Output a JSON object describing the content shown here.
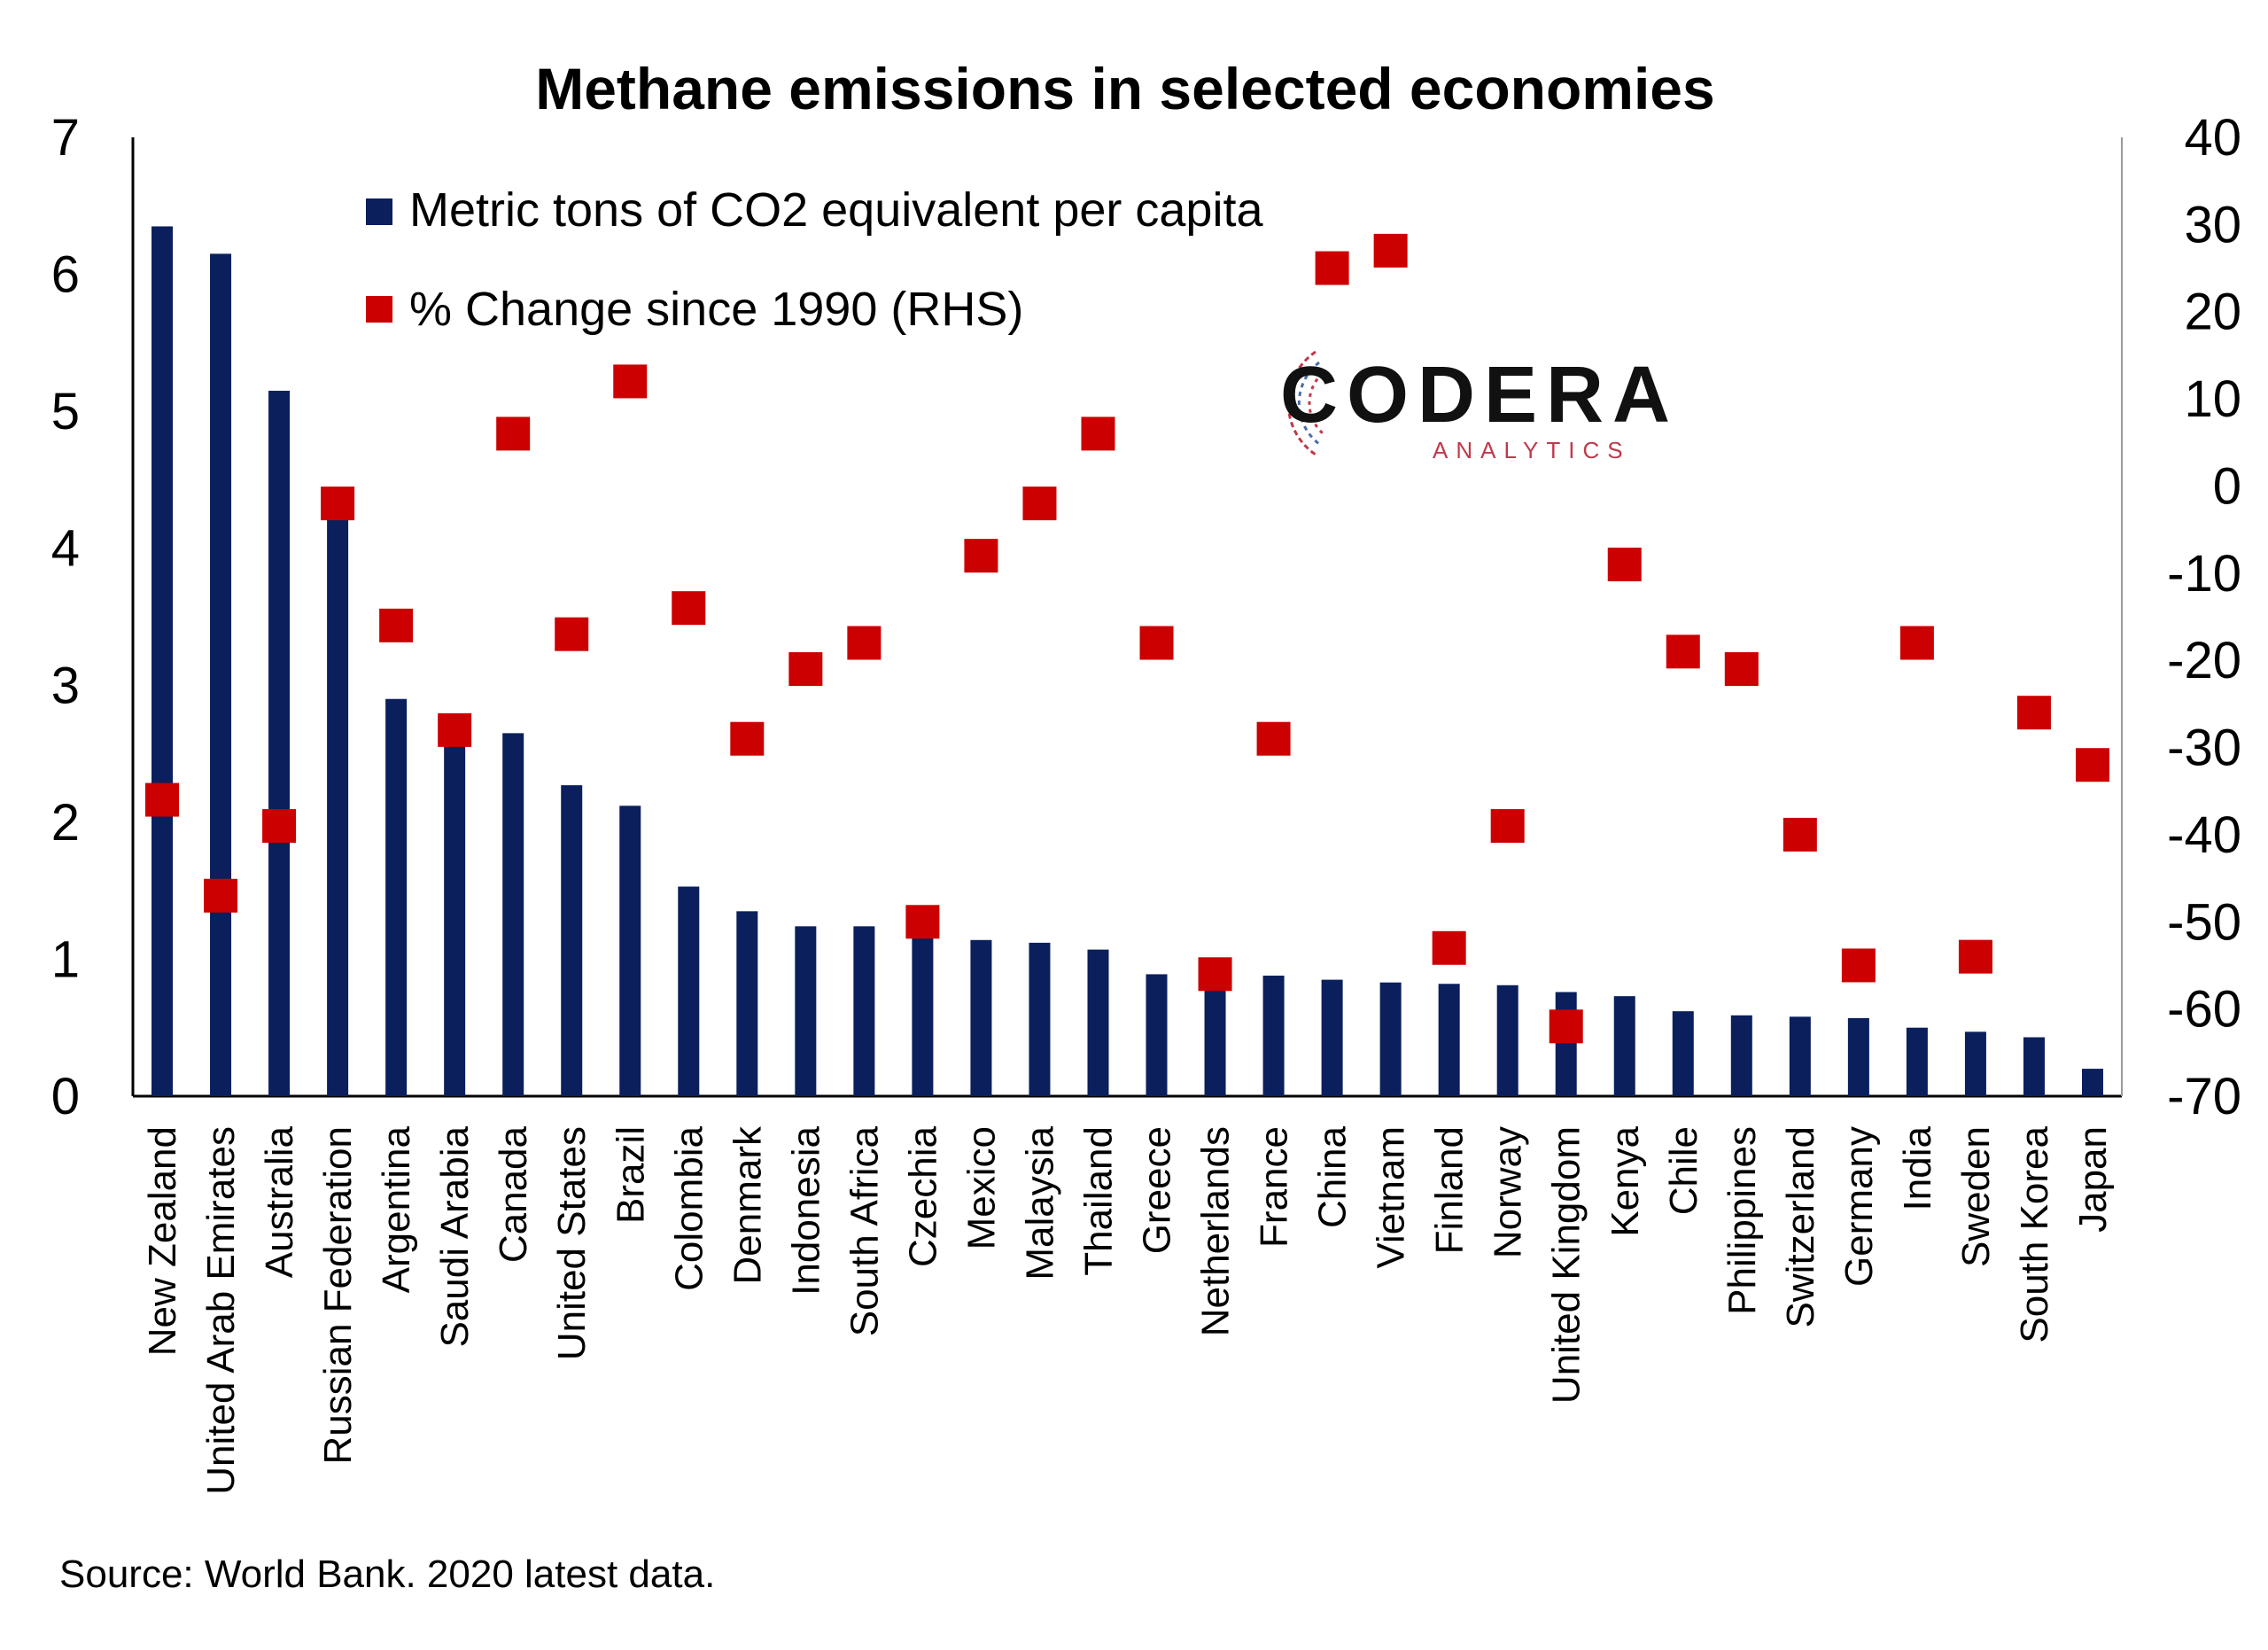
{
  "chart_data": {
    "type": "bar",
    "title": "Methane emissions in selected economies",
    "categories": [
      "New Zealand",
      "United Arab Emirates",
      "Australia",
      "Russian Federation",
      "Argentina",
      "Saudi Arabia",
      "Canada",
      "United States",
      "Brazil",
      "Colombia",
      "Denmark",
      "Indonesia",
      "South Africa",
      "Czechia",
      "Mexico",
      "Malaysia",
      "Thailand",
      "Greece",
      "Netherlands",
      "France",
      "China",
      "Vietnam",
      "Finland",
      "Norway",
      "United Kingdom",
      "Kenya",
      "Chile",
      "Philippines",
      "Switzerland",
      "Germany",
      "India",
      "Sweden",
      "South Korea",
      "Japan"
    ],
    "series": [
      {
        "name": "Metric tons of CO2 equivalent per capita",
        "type": "bar",
        "axis": "left",
        "color": "#0a1f5c",
        "values": [
          6.35,
          6.15,
          5.15,
          4.32,
          2.9,
          2.77,
          2.65,
          2.27,
          2.12,
          1.53,
          1.35,
          1.24,
          1.24,
          1.16,
          1.14,
          1.12,
          1.07,
          0.89,
          0.84,
          0.88,
          0.85,
          0.83,
          0.82,
          0.81,
          0.76,
          0.73,
          0.62,
          0.59,
          0.58,
          0.57,
          0.5,
          0.47,
          0.43,
          0.2
        ]
      },
      {
        "name": "% Change since 1990 (RHS)",
        "type": "scatter",
        "axis": "right",
        "color": "#cc0000",
        "values": [
          -36,
          -47,
          -39,
          -2,
          -16,
          -28,
          6,
          -17,
          12,
          -14,
          -29,
          -21,
          -18,
          -50,
          -8,
          -2,
          6,
          -18,
          -56,
          -29,
          25,
          27,
          -53,
          -39,
          -62,
          -9,
          -19,
          -21,
          -40,
          -55,
          -18,
          -54,
          -26,
          -32
        ]
      }
    ],
    "ylim": [
      0,
      7
    ],
    "yticks": [
      "0",
      "1",
      "2",
      "3",
      "4",
      "5",
      "6",
      "7"
    ],
    "y2lim": [
      -70,
      40
    ],
    "y2ticks": [
      "-70",
      "-60",
      "-50",
      "-40",
      "-30",
      "-20",
      "-10",
      "0",
      "10",
      "20",
      "30",
      "40"
    ],
    "legend_position": "top-left",
    "grid": false
  },
  "logo": {
    "word": "CODERA",
    "sub": "ANALYTICS"
  },
  "source": "Source: World Bank. 2020 latest data."
}
